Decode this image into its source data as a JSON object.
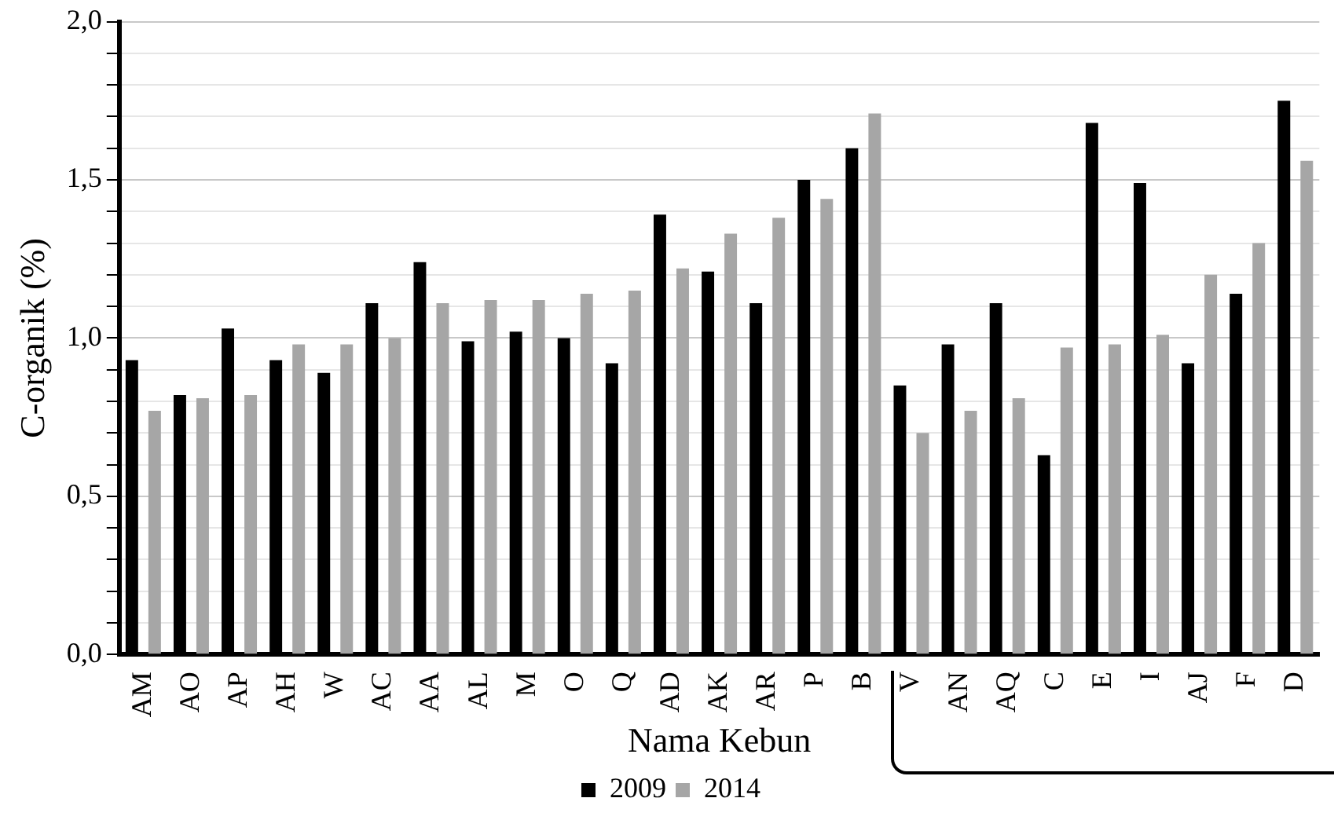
{
  "chart_data": {
    "type": "bar",
    "xlabel": "Nama Kebun",
    "ylabel": "C-organik (%)",
    "categories": [
      "AM",
      "AO",
      "AP",
      "AH",
      "W",
      "AC",
      "AA",
      "AL",
      "M",
      "O",
      "Q",
      "AD",
      "AK",
      "AR",
      "P",
      "B",
      "V",
      "AN",
      "AQ",
      "C",
      "E",
      "I",
      "AJ",
      "F",
      "D"
    ],
    "series": [
      {
        "name": "2009",
        "color": "#000000",
        "values": [
          0.93,
          0.82,
          1.03,
          0.93,
          0.89,
          1.11,
          1.24,
          0.99,
          1.02,
          1.0,
          0.92,
          1.39,
          1.21,
          1.11,
          1.5,
          1.6,
          0.85,
          0.98,
          1.11,
          0.63,
          1.68,
          1.49,
          0.92,
          1.14,
          1.75
        ]
      },
      {
        "name": "2014",
        "color": "#a6a6a6",
        "values": [
          0.77,
          0.81,
          0.82,
          0.98,
          0.98,
          1.0,
          1.11,
          1.12,
          1.12,
          1.14,
          1.15,
          1.22,
          1.33,
          1.38,
          1.44,
          1.71,
          0.7,
          0.77,
          0.81,
          0.97,
          0.98,
          1.01,
          1.2,
          1.3,
          1.56
        ]
      }
    ],
    "ylim": [
      0,
      2
    ],
    "yticks": [
      {
        "value": 0,
        "label": "0,0"
      },
      {
        "value": 0.1,
        "label": null
      },
      {
        "value": 0.2,
        "label": null
      },
      {
        "value": 0.3,
        "label": null
      },
      {
        "value": 0.4,
        "label": null
      },
      {
        "value": 0.5,
        "label": "0,5"
      },
      {
        "value": 0.6,
        "label": null
      },
      {
        "value": 0.7,
        "label": null
      },
      {
        "value": 0.8,
        "label": null
      },
      {
        "value": 0.9,
        "label": null
      },
      {
        "value": 1,
        "label": "1,0"
      },
      {
        "value": 1.1,
        "label": null
      },
      {
        "value": 1.2,
        "label": null
      },
      {
        "value": 1.3,
        "label": null
      },
      {
        "value": 1.4,
        "label": null
      },
      {
        "value": 1.5,
        "label": "1,5"
      },
      {
        "value": 1.6,
        "label": null
      },
      {
        "value": 1.7,
        "label": null
      },
      {
        "value": 1.8,
        "label": null
      },
      {
        "value": 1.9,
        "label": null
      },
      {
        "value": 2,
        "label": "2,0"
      }
    ],
    "grid": "y",
    "legend": "bottom"
  }
}
